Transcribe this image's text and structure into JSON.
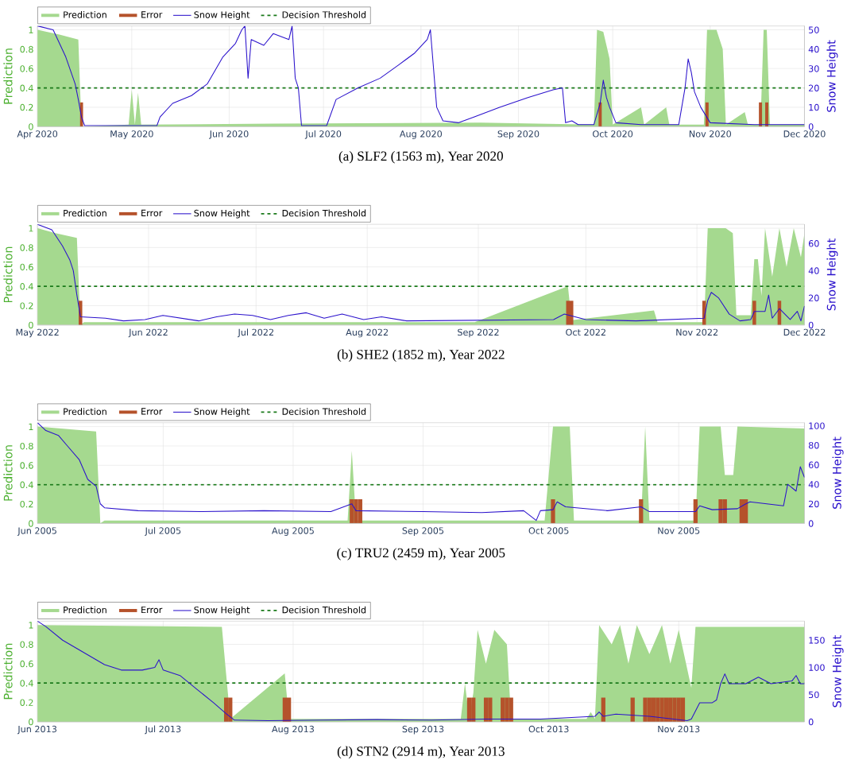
{
  "chart_data": [
    {
      "type": "area",
      "title": "(a) SLF2 (1563 m), Year 2020",
      "ylabel": "Prediction",
      "y2label": "Snow Height",
      "grid": true,
      "legend": "top",
      "xlim": [
        "2020-04-01",
        "2020-12-01"
      ],
      "xticks": [
        {
          "value": "2020-04-01",
          "label": "Apr 2020"
        },
        {
          "value": "2020-05-01",
          "label": "May 2020"
        },
        {
          "value": "2020-06-01",
          "label": "Jun 2020"
        },
        {
          "value": "2020-07-01",
          "label": "Jul 2020"
        },
        {
          "value": "2020-08-01",
          "label": "Aug 2020"
        },
        {
          "value": "2020-09-01",
          "label": "Sep 2020"
        },
        {
          "value": "2020-10-01",
          "label": "Oct 2020"
        },
        {
          "value": "2020-11-01",
          "label": "Nov 2020"
        },
        {
          "value": "2020-12-01",
          "label": "Dec 2020"
        }
      ],
      "ylim": [
        0,
        1.04
      ],
      "yticks": [
        0,
        0.2,
        0.4,
        0.6,
        0.8,
        1
      ],
      "y2lim": [
        0,
        52
      ],
      "y2ticks": [
        0,
        10,
        20,
        30,
        40,
        50
      ],
      "ref_lines": [
        {
          "axis": "y",
          "value": 0.4,
          "label": "Decision Threshold",
          "color": "#1a7a1a",
          "line_style": "dashed"
        }
      ],
      "series": [
        {
          "name": "Prediction",
          "color": "#a5d98f",
          "x": [
            "2020-04-01",
            "2020-04-08",
            "2020-04-14",
            "2020-04-15",
            "2020-04-30",
            "2020-05-01",
            "2020-05-02",
            "2020-05-03",
            "2020-05-04",
            "2020-06-15",
            "2020-08-20",
            "2020-09-25",
            "2020-09-26",
            "2020-09-28",
            "2020-09-30",
            "2020-10-01",
            "2020-10-10",
            "2020-10-11",
            "2020-10-18",
            "2020-10-19",
            "2020-10-30",
            "2020-10-31",
            "2020-11-03",
            "2020-11-05",
            "2020-11-06",
            "2020-11-12",
            "2020-11-13",
            "2020-11-17",
            "2020-11-18",
            "2020-11-19",
            "2020-11-20",
            "2020-12-01"
          ],
          "values": [
            1,
            0.95,
            0.9,
            0,
            0.02,
            0.38,
            0.02,
            0.35,
            0.02,
            0.03,
            0.04,
            0.02,
            1,
            0.98,
            0.7,
            0.02,
            0.2,
            0.02,
            0.2,
            0.02,
            0.02,
            1,
            1,
            0.8,
            0.02,
            0.15,
            0.02,
            0.02,
            1,
            1,
            0.02,
            0.02
          ]
        },
        {
          "name": "Error",
          "type": "bar",
          "color": "#b5522b",
          "x": [
            "2020-04-15",
            "2020-09-27",
            "2020-10-31",
            "2020-11-17",
            "2020-11-19"
          ],
          "values": [
            0.25,
            0.25,
            0.25,
            0.25,
            0.25
          ]
        },
        {
          "name": "Snow Height",
          "type": "line",
          "axis": "y2",
          "color": "#2b12cc",
          "x": [
            "2020-04-01",
            "2020-04-06",
            "2020-04-10",
            "2020-04-13",
            "2020-04-14",
            "2020-04-15",
            "2020-04-16",
            "2020-05-09",
            "2020-05-10",
            "2020-05-14",
            "2020-05-20",
            "2020-05-25",
            "2020-05-30",
            "2020-06-03",
            "2020-06-05",
            "2020-06-06",
            "2020-06-07",
            "2020-06-08",
            "2020-06-12",
            "2020-06-15",
            "2020-06-20",
            "2020-06-21",
            "2020-06-22",
            "2020-06-23",
            "2020-06-24",
            "2020-07-02",
            "2020-07-05",
            "2020-07-12",
            "2020-07-19",
            "2020-07-25",
            "2020-07-30",
            "2020-08-03",
            "2020-08-04",
            "2020-08-05",
            "2020-08-06",
            "2020-08-08",
            "2020-08-13",
            "2020-08-18",
            "2020-08-26",
            "2020-09-04",
            "2020-09-12",
            "2020-09-15",
            "2020-09-16",
            "2020-09-18",
            "2020-09-20",
            "2020-09-25",
            "2020-09-27",
            "2020-09-28",
            "2020-09-29",
            "2020-09-30",
            "2020-10-02",
            "2020-10-10",
            "2020-10-22",
            "2020-10-24",
            "2020-10-25",
            "2020-10-26",
            "2020-10-27",
            "2020-10-29",
            "2020-11-01",
            "2020-11-15",
            "2020-12-01"
          ],
          "values": [
            52,
            50,
            36,
            22,
            14,
            5,
            0.5,
            0.5,
            5,
            12,
            16,
            22,
            36,
            43,
            50,
            52,
            25,
            45,
            42,
            48,
            45,
            52,
            25,
            20,
            0.5,
            0.5,
            14,
            20,
            25,
            32,
            38,
            45,
            50,
            30,
            10,
            3,
            2,
            5,
            10,
            15,
            19,
            20,
            2,
            3,
            1,
            1,
            12,
            24,
            15,
            10,
            2,
            1,
            1,
            20,
            35,
            28,
            18,
            10,
            2,
            1,
            1
          ]
        }
      ]
    },
    {
      "type": "area",
      "title": "(b) SHE2 (1852 m), Year 2022",
      "ylabel": "Prediction",
      "y2label": "Snow Height",
      "grid": true,
      "legend": "top",
      "xlim": [
        "2022-05-01",
        "2022-12-01"
      ],
      "xticks": [
        {
          "value": "2022-05-01",
          "label": "May 2022"
        },
        {
          "value": "2022-06-01",
          "label": "Jun 2022"
        },
        {
          "value": "2022-07-01",
          "label": "Jul 2022"
        },
        {
          "value": "2022-08-01",
          "label": "Aug 2022"
        },
        {
          "value": "2022-09-01",
          "label": "Sep 2022"
        },
        {
          "value": "2022-10-01",
          "label": "Oct 2022"
        },
        {
          "value": "2022-11-01",
          "label": "Nov 2022"
        },
        {
          "value": "2022-12-01",
          "label": "Dec 2022"
        }
      ],
      "ylim": [
        0,
        1.04
      ],
      "yticks": [
        0,
        0.2,
        0.4,
        0.6,
        0.8,
        1
      ],
      "y2lim": [
        0,
        74
      ],
      "y2ticks": [
        0,
        20,
        40,
        60
      ],
      "ref_lines": [
        {
          "axis": "y",
          "value": 0.4,
          "label": "Decision Threshold",
          "color": "#1a7a1a",
          "line_style": "dashed"
        }
      ],
      "series": [
        {
          "name": "Prediction",
          "color": "#a5d98f",
          "x": [
            "2022-05-01",
            "2022-05-06",
            "2022-05-12",
            "2022-05-13",
            "2022-05-14",
            "2022-08-31",
            "2022-09-26",
            "2022-09-27",
            "2022-10-20",
            "2022-10-21",
            "2022-11-03",
            "2022-11-04",
            "2022-11-09",
            "2022-11-11",
            "2022-11-12",
            "2022-11-16",
            "2022-11-17",
            "2022-11-18",
            "2022-11-19",
            "2022-11-20",
            "2022-11-22",
            "2022-11-24",
            "2022-11-26",
            "2022-11-28",
            "2022-11-30",
            "2022-12-01"
          ],
          "values": [
            1,
            0.95,
            0.9,
            0,
            0.03,
            0.03,
            0.4,
            0.05,
            0.15,
            0.03,
            0.03,
            1,
            1,
            0.95,
            0.1,
            0.1,
            0.68,
            0.68,
            0.3,
            1,
            0.5,
            1,
            0.6,
            1,
            0.7,
            0.95
          ]
        },
        {
          "name": "Error",
          "type": "bar",
          "color": "#b5522b",
          "x": [
            "2022-05-13",
            "2022-09-26",
            "2022-09-27",
            "2022-11-03",
            "2022-11-17",
            "2022-11-24"
          ],
          "values": [
            0.25,
            0.25,
            0.25,
            0.25,
            0.25,
            0.25
          ]
        },
        {
          "name": "Snow Height",
          "type": "line",
          "axis": "y2",
          "color": "#2b12cc",
          "x": [
            "2022-05-01",
            "2022-05-05",
            "2022-05-08",
            "2022-05-10",
            "2022-05-11",
            "2022-05-12",
            "2022-05-13",
            "2022-05-20",
            "2022-05-25",
            "2022-05-31",
            "2022-06-05",
            "2022-06-10",
            "2022-06-15",
            "2022-06-20",
            "2022-06-25",
            "2022-06-30",
            "2022-07-05",
            "2022-07-10",
            "2022-07-15",
            "2022-07-20",
            "2022-07-25",
            "2022-07-31",
            "2022-08-05",
            "2022-08-12",
            "2022-09-22",
            "2022-09-25",
            "2022-10-01",
            "2022-10-15",
            "2022-11-03",
            "2022-11-04",
            "2022-11-05",
            "2022-11-07",
            "2022-11-10",
            "2022-11-13",
            "2022-11-16",
            "2022-11-17",
            "2022-11-20",
            "2022-11-21",
            "2022-11-22",
            "2022-11-24",
            "2022-11-27",
            "2022-11-29",
            "2022-11-30",
            "2022-12-01"
          ],
          "values": [
            74,
            70,
            58,
            48,
            40,
            22,
            6,
            5,
            3,
            4,
            7,
            5,
            3,
            6,
            8,
            7,
            4,
            7,
            9,
            5,
            8,
            4,
            6,
            3,
            4,
            8,
            4,
            3,
            5,
            18,
            24,
            20,
            8,
            3,
            4,
            10,
            10,
            22,
            5,
            12,
            4,
            10,
            3,
            14
          ]
        }
      ]
    },
    {
      "type": "area",
      "title": "(c) TRU2 (2459 m), Year 2005",
      "ylabel": "Prediction",
      "y2label": "Snow Height",
      "grid": true,
      "legend": "top",
      "xlim": [
        "2005-06-01",
        "2005-12-01"
      ],
      "xticks": [
        {
          "value": "2005-06-01",
          "label": "Jun 2005"
        },
        {
          "value": "2005-07-01",
          "label": "Jul 2005"
        },
        {
          "value": "2005-08-01",
          "label": "Aug 2005"
        },
        {
          "value": "2005-09-01",
          "label": "Sep 2005"
        },
        {
          "value": "2005-10-01",
          "label": "Oct 2005"
        },
        {
          "value": "2005-11-01",
          "label": "Nov 2005"
        }
      ],
      "ylim": [
        0,
        1.04
      ],
      "yticks": [
        0,
        0.2,
        0.4,
        0.6,
        0.8,
        1
      ],
      "y2lim": [
        0,
        103
      ],
      "y2ticks": [
        0,
        20,
        40,
        60,
        80,
        100
      ],
      "ref_lines": [
        {
          "axis": "y",
          "value": 0.4,
          "label": "Decision Threshold",
          "color": "#1a7a1a",
          "line_style": "dashed"
        }
      ],
      "series": [
        {
          "name": "Prediction",
          "color": "#a5d98f",
          "x": [
            "2005-06-01",
            "2005-06-15",
            "2005-06-16",
            "2005-06-17",
            "2005-08-14",
            "2005-08-15",
            "2005-08-16",
            "2005-09-30",
            "2005-10-02",
            "2005-10-06",
            "2005-10-07",
            "2005-10-23",
            "2005-10-24",
            "2005-10-25",
            "2005-11-05",
            "2005-11-06",
            "2005-11-11",
            "2005-11-12",
            "2005-11-14",
            "2005-11-15",
            "2005-12-01"
          ],
          "values": [
            1,
            0.95,
            0,
            0.03,
            0.03,
            0.75,
            0.03,
            0.03,
            1,
            1,
            0.03,
            0.03,
            1,
            0.03,
            0.03,
            1,
            1,
            0.5,
            0.5,
            1,
            0.98
          ]
        },
        {
          "name": "Error",
          "type": "bar",
          "color": "#b5522b",
          "x": [
            "2005-08-15",
            "2005-08-16",
            "2005-08-17",
            "2005-10-02",
            "2005-10-23",
            "2005-11-05",
            "2005-11-11",
            "2005-11-12",
            "2005-11-16",
            "2005-11-17"
          ],
          "values": [
            0.25,
            0.25,
            0.25,
            0.25,
            0.25,
            0.25,
            0.25,
            0.25,
            0.25,
            0.25
          ]
        },
        {
          "name": "Snow Height",
          "type": "line",
          "axis": "y2",
          "color": "#2b12cc",
          "x": [
            "2005-06-01",
            "2005-06-03",
            "2005-06-06",
            "2005-06-08",
            "2005-06-11",
            "2005-06-13",
            "2005-06-15",
            "2005-06-16",
            "2005-06-17",
            "2005-06-25",
            "2005-07-10",
            "2005-07-25",
            "2005-08-10",
            "2005-08-15",
            "2005-08-16",
            "2005-09-01",
            "2005-09-15",
            "2005-09-25",
            "2005-09-28",
            "2005-09-29",
            "2005-10-02",
            "2005-10-03",
            "2005-10-05",
            "2005-10-15",
            "2005-10-23",
            "2005-10-25",
            "2005-11-05",
            "2005-11-06",
            "2005-11-09",
            "2005-11-15",
            "2005-11-17",
            "2005-11-18",
            "2005-11-26",
            "2005-11-27",
            "2005-11-29",
            "2005-11-30",
            "2005-12-01"
          ],
          "values": [
            103,
            95,
            90,
            80,
            65,
            45,
            38,
            20,
            16,
            13,
            12,
            13,
            12,
            20,
            13,
            12,
            11,
            13,
            3,
            13,
            14,
            22,
            17,
            13,
            17,
            12,
            12,
            18,
            14,
            15,
            20,
            22,
            18,
            40,
            33,
            58,
            47
          ]
        }
      ]
    },
    {
      "type": "area",
      "title": "(d) STN2 (2914 m), Year 2013",
      "ylabel": "Prediction",
      "y2label": "Snow Height",
      "grid": true,
      "legend": "top",
      "xlim": [
        "2013-06-01",
        "2013-12-01"
      ],
      "xticks": [
        {
          "value": "2013-06-01",
          "label": "Jun 2013"
        },
        {
          "value": "2013-07-01",
          "label": "Jul 2013"
        },
        {
          "value": "2013-08-01",
          "label": "Aug 2013"
        },
        {
          "value": "2013-09-01",
          "label": "Sep 2013"
        },
        {
          "value": "2013-10-01",
          "label": "Oct 2013"
        },
        {
          "value": "2013-11-01",
          "label": "Nov 2013"
        }
      ],
      "ylim": [
        0,
        1.04
      ],
      "yticks": [
        0,
        0.2,
        0.4,
        0.6,
        0.8,
        1
      ],
      "y2lim": [
        0,
        185
      ],
      "y2ticks": [
        0,
        50,
        100,
        150
      ],
      "ref_lines": [
        {
          "axis": "y",
          "value": 0.4,
          "label": "Decision Threshold",
          "color": "#1a7a1a",
          "line_style": "dashed"
        }
      ],
      "series": [
        {
          "name": "Prediction",
          "color": "#a5d98f",
          "x": [
            "2013-06-01",
            "2013-07-15",
            "2013-07-16",
            "2013-07-17",
            "2013-07-30",
            "2013-07-31",
            "2013-09-10",
            "2013-09-11",
            "2013-09-12",
            "2013-09-13",
            "2013-09-14",
            "2013-09-16",
            "2013-09-18",
            "2013-09-21",
            "2013-09-22",
            "2013-10-10",
            "2013-10-11",
            "2013-10-12",
            "2013-10-13",
            "2013-10-16",
            "2013-10-18",
            "2013-10-20",
            "2013-10-22",
            "2013-10-25",
            "2013-10-28",
            "2013-10-30",
            "2013-11-01",
            "2013-11-04",
            "2013-11-05",
            "2013-12-01"
          ],
          "values": [
            1,
            0.98,
            0.5,
            0.03,
            0.5,
            0.03,
            0.03,
            0.4,
            0.03,
            0.3,
            0.95,
            0.6,
            0.95,
            0.8,
            0.03,
            0.03,
            0.1,
            0.03,
            1,
            0.8,
            1,
            0.6,
            1,
            0.7,
            1,
            0.6,
            0.95,
            0.35,
            0.98,
            0.98
          ]
        },
        {
          "name": "Error",
          "type": "bar",
          "color": "#b5522b",
          "x": [
            "2013-07-16",
            "2013-07-17",
            "2013-07-30",
            "2013-07-31",
            "2013-09-12",
            "2013-09-13",
            "2013-09-16",
            "2013-09-17",
            "2013-09-20",
            "2013-09-21",
            "2013-09-22",
            "2013-10-14",
            "2013-10-21",
            "2013-10-24",
            "2013-10-25",
            "2013-10-26",
            "2013-10-27",
            "2013-10-28",
            "2013-10-29",
            "2013-10-30",
            "2013-10-31",
            "2013-11-01",
            "2013-11-02"
          ],
          "values": [
            0.25,
            0.25,
            0.25,
            0.25,
            0.25,
            0.25,
            0.25,
            0.25,
            0.25,
            0.25,
            0.25,
            0.25,
            0.25,
            0.25,
            0.25,
            0.25,
            0.25,
            0.25,
            0.25,
            0.25,
            0.25,
            0.25,
            0.25
          ]
        },
        {
          "name": "Snow Height",
          "type": "line",
          "axis": "y2",
          "color": "#2b12cc",
          "x": [
            "2013-06-01",
            "2013-06-03",
            "2013-06-07",
            "2013-06-17",
            "2013-06-21",
            "2013-06-26",
            "2013-06-29",
            "2013-06-30",
            "2013-07-01",
            "2013-07-05",
            "2013-07-09",
            "2013-07-13",
            "2013-07-16",
            "2013-07-18",
            "2013-07-26",
            "2013-08-08",
            "2013-08-21",
            "2013-09-03",
            "2013-09-16",
            "2013-09-29",
            "2013-10-12",
            "2013-10-13",
            "2013-10-14",
            "2013-10-17",
            "2013-10-25",
            "2013-11-03",
            "2013-11-04",
            "2013-11-06",
            "2013-11-09",
            "2013-11-10",
            "2013-11-11",
            "2013-11-12",
            "2013-11-13",
            "2013-11-17",
            "2013-11-20",
            "2013-11-23",
            "2013-11-28",
            "2013-11-29",
            "2013-11-30",
            "2013-12-01"
          ],
          "values": [
            185,
            175,
            150,
            105,
            95,
            95,
            100,
            114,
            95,
            85,
            60,
            35,
            15,
            3,
            2,
            3,
            4,
            3,
            5,
            5,
            10,
            18,
            10,
            14,
            10,
            2,
            5,
            35,
            35,
            40,
            70,
            88,
            70,
            70,
            82,
            70,
            75,
            85,
            70,
            70
          ]
        }
      ]
    }
  ]
}
